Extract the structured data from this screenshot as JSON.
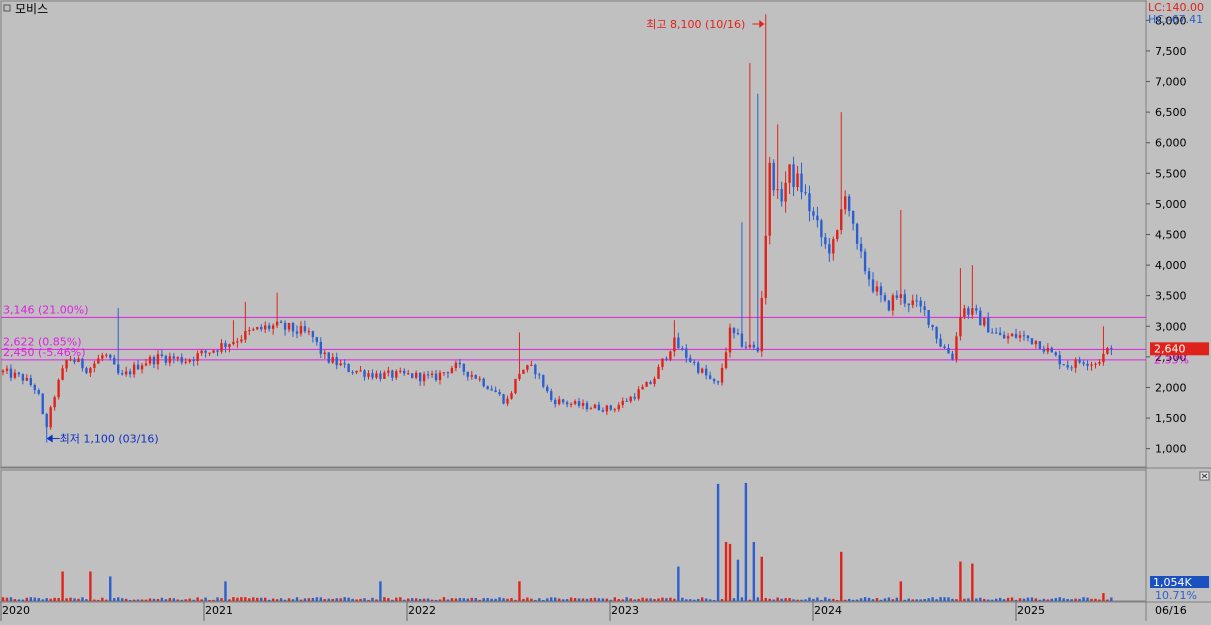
{
  "title": "모비스",
  "colors": {
    "background": "#c0c0c0",
    "up": "#e0231a",
    "down": "#2b5fd0",
    "guide_line": "#e020e0",
    "high_label": "#e0231a",
    "low_label": "#1030c0",
    "badge_bg": "#e0231a",
    "volume_badge_bg": "#1a50c0",
    "axis_text": "#000000"
  },
  "info": {
    "lc": "LC:140.00",
    "hc": "HC:-67.41"
  },
  "annotations": {
    "high": "최고 8,100 (10/16)",
    "low": "최저 1,100 (03/16)"
  },
  "guide_lines": [
    {
      "label": "3,146 (21.00%)",
      "value": 3146
    },
    {
      "label": "2,622 (0.85%)",
      "value": 2622
    },
    {
      "label": "2,450 (-5.46%)",
      "value": 2450
    }
  ],
  "current_price": {
    "label": "2,640",
    "change_label": "2.33%"
  },
  "volume_panel": {
    "badge": "1,054K",
    "pct_label": "10.71%"
  },
  "chart_data": {
    "type": "candlestick",
    "title": "모비스",
    "y_ticks": [
      1000,
      1500,
      2000,
      2500,
      3000,
      3500,
      4000,
      4500,
      5000,
      5500,
      6000,
      6500,
      7000,
      7500,
      8000
    ],
    "y_tick_labels": [
      "1,000",
      "1,500",
      "2,000",
      "2,500",
      "3,000",
      "3,500",
      "4,000",
      "4,500",
      "5,000",
      "5,500",
      "6,000",
      "6,500",
      "7,000",
      "7,500",
      "8,000"
    ],
    "ylim": [
      700,
      8300
    ],
    "x_labels": [
      "2020",
      "2021",
      "2022",
      "2023",
      "2024",
      "2025"
    ],
    "x_end_label": "06/16",
    "high": {
      "value": 8100,
      "date": "10/16",
      "label": "최고 8,100 (10/16)"
    },
    "low": {
      "value": 1100,
      "date": "03/16",
      "label": "최저 1,100 (03/16)"
    },
    "last_close": 2640,
    "guide_lines": [
      3146,
      2622,
      2450
    ],
    "price_anchors": [
      [
        2020.0,
        2250
      ],
      [
        2020.1,
        2150
      ],
      [
        2020.17,
        1950
      ],
      [
        2020.21,
        1300
      ],
      [
        2020.26,
        1950
      ],
      [
        2020.32,
        2500
      ],
      [
        2020.42,
        2300
      ],
      [
        2020.5,
        2550
      ],
      [
        2020.58,
        2150
      ],
      [
        2020.68,
        2400
      ],
      [
        2020.78,
        2500
      ],
      [
        2020.9,
        2450
      ],
      [
        2021.02,
        2600
      ],
      [
        2021.12,
        2750
      ],
      [
        2021.22,
        2900
      ],
      [
        2021.32,
        3000
      ],
      [
        2021.42,
        2950
      ],
      [
        2021.52,
        2850
      ],
      [
        2021.58,
        2500
      ],
      [
        2021.7,
        2300
      ],
      [
        2021.85,
        2200
      ],
      [
        2022.0,
        2200
      ],
      [
        2022.12,
        2150
      ],
      [
        2022.22,
        2350
      ],
      [
        2022.32,
        2200
      ],
      [
        2022.42,
        1950
      ],
      [
        2022.48,
        1750
      ],
      [
        2022.55,
        2300
      ],
      [
        2022.62,
        2300
      ],
      [
        2022.7,
        1800
      ],
      [
        2022.85,
        1700
      ],
      [
        2023.0,
        1650
      ],
      [
        2023.1,
        1850
      ],
      [
        2023.2,
        2100
      ],
      [
        2023.3,
        2750
      ],
      [
        2023.4,
        2400
      ],
      [
        2023.52,
        2000
      ],
      [
        2023.58,
        2900
      ],
      [
        2023.65,
        2700
      ],
      [
        2023.72,
        2600
      ],
      [
        2023.78,
        5700
      ],
      [
        2023.82,
        5000
      ],
      [
        2023.87,
        5500
      ],
      [
        2023.93,
        5300
      ],
      [
        2024.0,
        4700
      ],
      [
        2024.05,
        4300
      ],
      [
        2024.1,
        4300
      ],
      [
        2024.15,
        5300
      ],
      [
        2024.2,
        4300
      ],
      [
        2024.28,
        3700
      ],
      [
        2024.35,
        3300
      ],
      [
        2024.4,
        3500
      ],
      [
        2024.47,
        3400
      ],
      [
        2024.55,
        3200
      ],
      [
        2024.62,
        2700
      ],
      [
        2024.68,
        2500
      ],
      [
        2024.72,
        3300
      ],
      [
        2024.78,
        3200
      ],
      [
        2024.85,
        3000
      ],
      [
        2024.92,
        2800
      ],
      [
        2025.0,
        2850
      ],
      [
        2025.1,
        2750
      ],
      [
        2025.18,
        2500
      ],
      [
        2025.25,
        2350
      ],
      [
        2025.32,
        2450
      ],
      [
        2025.38,
        2400
      ],
      [
        2025.46,
        2640
      ]
    ],
    "spikes": [
      [
        2020.57,
        3300
      ],
      [
        2021.14,
        3100
      ],
      [
        2021.2,
        3400
      ],
      [
        2021.35,
        3550
      ],
      [
        2022.54,
        2900
      ],
      [
        2023.3,
        3100
      ],
      [
        2023.64,
        4700
      ],
      [
        2023.68,
        7300
      ],
      [
        2023.72,
        6800
      ],
      [
        2023.76,
        8100
      ],
      [
        2023.82,
        6300
      ],
      [
        2024.12,
        6500
      ],
      [
        2024.42,
        4900
      ],
      [
        2024.72,
        3950
      ],
      [
        2024.78,
        4000
      ],
      [
        2025.43,
        3000
      ]
    ],
    "volume_spikes": [
      [
        2020.29,
        30
      ],
      [
        2020.43,
        30
      ],
      [
        2020.52,
        25
      ],
      [
        2021.1,
        20
      ],
      [
        2021.85,
        20
      ],
      [
        2022.54,
        20
      ],
      [
        2023.33,
        35
      ],
      [
        2023.52,
        119
      ],
      [
        2023.56,
        60
      ],
      [
        2023.58,
        58
      ],
      [
        2023.62,
        42
      ],
      [
        2023.66,
        120
      ],
      [
        2023.7,
        60
      ],
      [
        2023.74,
        45
      ],
      [
        2024.12,
        50
      ],
      [
        2024.42,
        20
      ],
      [
        2024.72,
        40
      ],
      [
        2024.78,
        38
      ],
      [
        2025.43,
        8
      ]
    ]
  }
}
